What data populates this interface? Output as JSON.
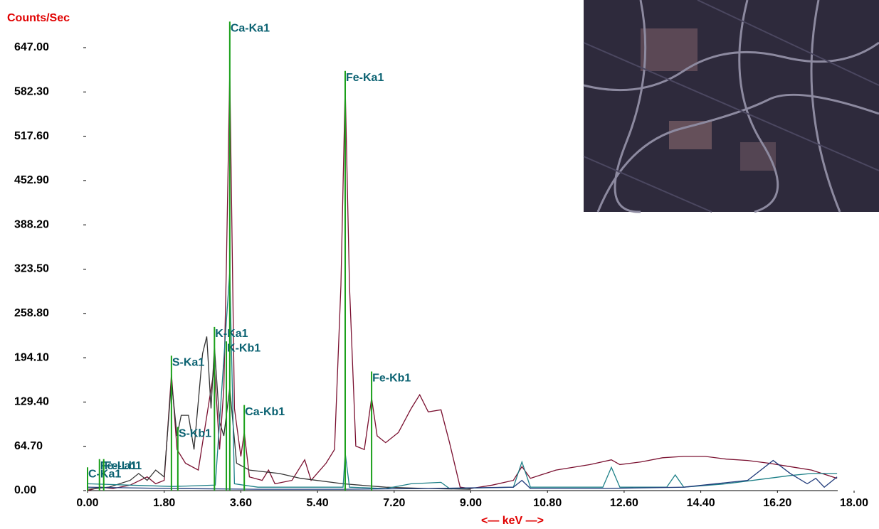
{
  "chart_data": {
    "type": "line",
    "y_label": "Counts/Sec",
    "x_label": "<— keV —>",
    "xlim": [
      0,
      18
    ],
    "ylim": [
      0,
      647
    ],
    "xticks": [
      {
        "value": 0,
        "label": "0.00"
      },
      {
        "value": 1.8,
        "label": "1.80"
      },
      {
        "value": 3.6,
        "label": "3.60"
      },
      {
        "value": 5.4,
        "label": "5.40"
      },
      {
        "value": 7.2,
        "label": "7.20"
      },
      {
        "value": 9,
        "label": "9.00"
      },
      {
        "value": 10.8,
        "label": "10.80"
      },
      {
        "value": 12.6,
        "label": "12.60"
      },
      {
        "value": 14.4,
        "label": "14.40"
      },
      {
        "value": 16.2,
        "label": "16.20"
      },
      {
        "value": 18,
        "label": "18.00"
      }
    ],
    "yticks": [
      {
        "value": 0,
        "label": "0.00"
      },
      {
        "value": 64.7,
        "label": "64.70"
      },
      {
        "value": 129.4,
        "label": "129.40"
      },
      {
        "value": 194.1,
        "label": "194.10"
      },
      {
        "value": 258.8,
        "label": "258.80"
      },
      {
        "value": 323.5,
        "label": "323.50"
      },
      {
        "value": 388.2,
        "label": "388.20"
      },
      {
        "value": 452.9,
        "label": "452.90"
      },
      {
        "value": 517.6,
        "label": "517.60"
      },
      {
        "value": 582.3,
        "label": "582.30"
      },
      {
        "value": 647,
        "label": "647.00"
      }
    ],
    "series": [
      {
        "color": "#7a1030",
        "x": [
          0,
          0.3,
          0.6,
          1.0,
          1.4,
          1.6,
          1.8,
          1.97,
          2.1,
          2.3,
          2.6,
          2.98,
          3.1,
          3.2,
          3.26,
          3.34,
          3.45,
          3.6,
          3.68,
          3.8,
          4.1,
          4.25,
          4.4,
          4.8,
          5.1,
          5.25,
          5.6,
          5.8,
          5.95,
          6.05,
          6.15,
          6.3,
          6.5,
          6.67,
          6.8,
          7.0,
          7.3,
          7.6,
          7.8,
          8.0,
          8.3,
          8.5,
          8.75,
          9.0,
          9.5,
          10.0,
          10.2,
          10.4,
          11.0,
          11.8,
          12.3,
          12.5,
          13.0,
          13.5,
          14.0,
          14.5,
          15.0,
          15.5,
          16.0,
          16.5,
          17.0,
          17.6
        ],
        "values": [
          0,
          5,
          3,
          8,
          20,
          10,
          15,
          170,
          60,
          40,
          30,
          180,
          60,
          150,
          330,
          610,
          120,
          50,
          85,
          20,
          15,
          30,
          10,
          15,
          45,
          15,
          40,
          60,
          300,
          590,
          300,
          65,
          60,
          135,
          80,
          70,
          85,
          120,
          140,
          115,
          118,
          70,
          5,
          3,
          8,
          15,
          35,
          18,
          30,
          38,
          45,
          38,
          42,
          48,
          50,
          50,
          46,
          44,
          40,
          35,
          30,
          18
        ]
      },
      {
        "color": "#333333",
        "x": [
          0,
          0.5,
          1.0,
          1.2,
          1.4,
          1.6,
          1.8,
          1.97,
          2.1,
          2.2,
          2.37,
          2.5,
          2.7,
          2.8,
          2.9,
          2.98,
          3.1,
          3.2,
          3.34,
          3.5,
          3.8,
          4.5,
          5.0,
          6.0,
          7.0,
          8.0,
          9.0
        ],
        "values": [
          2,
          5,
          15,
          25,
          15,
          30,
          20,
          160,
          80,
          110,
          110,
          60,
          200,
          225,
          120,
          210,
          100,
          80,
          150,
          40,
          30,
          25,
          18,
          10,
          5,
          3,
          2
        ]
      },
      {
        "color": "#1c7f87",
        "x": [
          0,
          1.0,
          2.0,
          3.0,
          3.34,
          3.45,
          4.0,
          6.0,
          6.05,
          6.15,
          7.0,
          7.6,
          8.3,
          8.5,
          10.0,
          10.2,
          10.4,
          12.1,
          12.3,
          12.5,
          13.6,
          13.8,
          14.0,
          15.0,
          16.0,
          16.5,
          17.0,
          17.6
        ],
        "values": [
          10,
          8,
          6,
          8,
          320,
          10,
          5,
          5,
          55,
          5,
          3,
          10,
          12,
          3,
          5,
          42,
          5,
          5,
          34,
          5,
          5,
          23,
          5,
          10,
          18,
          22,
          25,
          25
        ]
      },
      {
        "color": "#1f3a7a",
        "x": [
          0,
          2.0,
          4.0,
          6.0,
          8.0,
          10.0,
          10.2,
          10.4,
          12.0,
          14.0,
          15.5,
          16.1,
          16.5,
          16.9,
          17.1,
          17.3,
          17.6
        ],
        "values": [
          5,
          3,
          2,
          2,
          3,
          5,
          15,
          3,
          3,
          5,
          15,
          44,
          25,
          10,
          18,
          5,
          20
        ]
      }
    ],
    "markers": {
      "color": "#1aa01a",
      "label_color": "#0b6272",
      "labels": [
        "C-Ka1",
        "Fe-La1",
        "Fe-Lb1",
        "S-Ka1",
        "S-Kb1",
        "K-Ka1",
        "K-Kb1",
        "Ca-Ka1",
        "Ca-Kb1",
        "Fe-Ka1",
        "Fe-Kb1"
      ],
      "x": [
        0.0,
        0.28,
        0.38,
        1.97,
        2.12,
        2.98,
        3.26,
        3.34,
        3.68,
        6.05,
        6.67
      ],
      "values": [
        34,
        46,
        46,
        197,
        93,
        239,
        218,
        685,
        125,
        613,
        174
      ]
    }
  }
}
